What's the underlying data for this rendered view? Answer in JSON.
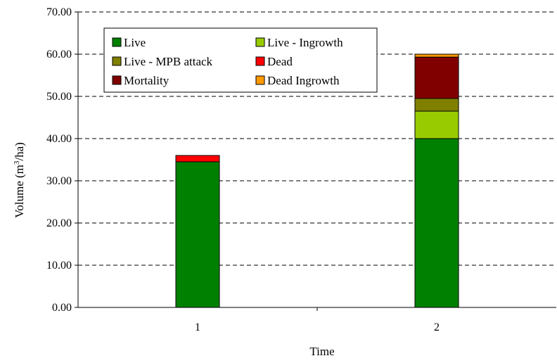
{
  "chart_data": {
    "type": "bar",
    "stacked": true,
    "title": "",
    "xlabel": "Time",
    "ylabel": "Volume (m",
    "ylabel_sup": "3",
    "ylabel_suffix": "/ha)",
    "categories": [
      "1",
      "2"
    ],
    "ylim": [
      0,
      70
    ],
    "yticks": [
      "0.00",
      "10.00",
      "20.00",
      "30.00",
      "40.00",
      "50.00",
      "60.00",
      "70.00"
    ],
    "grid": "horizontal dashed",
    "legend_position": "top-left inside",
    "series": [
      {
        "name": "Live",
        "color": "#008000",
        "values": [
          34.5,
          40.0
        ]
      },
      {
        "name": "Live - Ingrowth",
        "color": "#99cc00",
        "values": [
          0.0,
          6.5
        ]
      },
      {
        "name": "Live - MPB attack",
        "color": "#808000",
        "values": [
          0.0,
          3.0
        ]
      },
      {
        "name": "Dead",
        "color": "#ff0000",
        "values": [
          1.5,
          0.0
        ]
      },
      {
        "name": "Mortality",
        "color": "#800000",
        "values": [
          0.0,
          9.8
        ]
      },
      {
        "name": "Dead Ingrowth",
        "color": "#ff9900",
        "values": [
          0.0,
          0.7
        ]
      }
    ]
  }
}
